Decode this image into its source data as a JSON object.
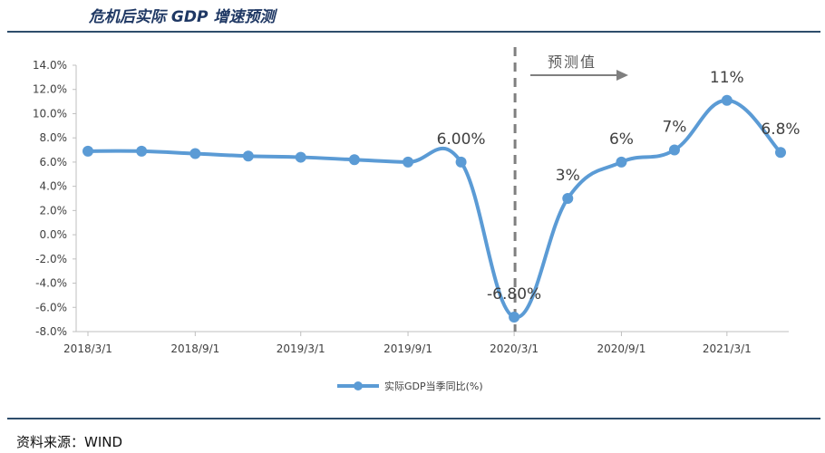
{
  "title": "危机后实际 GDP 增速预测",
  "source": "资料来源：WIND",
  "forecast_label": "预测值",
  "chart_data": {
    "type": "line",
    "title": "",
    "xlabel": "",
    "ylabel": "",
    "ylim": [
      -8.0,
      14.0
    ],
    "y_ticks": [
      "14.0%",
      "12.0%",
      "10.0%",
      "8.0%",
      "6.0%",
      "4.0%",
      "2.0%",
      "0.0%",
      "-2.0%",
      "-4.0%",
      "-6.0%",
      "-8.0%"
    ],
    "x_ticks": [
      "2018/3/1",
      "2018/9/1",
      "2019/3/1",
      "2019/9/1",
      "2020/3/1",
      "2020/9/1",
      "2021/3/1"
    ],
    "legend_position": "bottom",
    "forecast_start": "2020/3/1",
    "series": [
      {
        "name": "实际GDP当季同比(%)",
        "color": "#5b9bd5",
        "points": [
          {
            "x": "2018/3/1",
            "y": 6.9,
            "label": ""
          },
          {
            "x": "2018/6/1",
            "y": 6.9,
            "label": ""
          },
          {
            "x": "2018/9/1",
            "y": 6.7,
            "label": ""
          },
          {
            "x": "2018/12/1",
            "y": 6.5,
            "label": ""
          },
          {
            "x": "2019/3/1",
            "y": 6.4,
            "label": ""
          },
          {
            "x": "2019/6/1",
            "y": 6.2,
            "label": ""
          },
          {
            "x": "2019/9/1",
            "y": 6.0,
            "label": ""
          },
          {
            "x": "2019/12/1",
            "y": 6.0,
            "label": "6.00%"
          },
          {
            "x": "2020/3/1",
            "y": -6.8,
            "label": "-6.80%"
          },
          {
            "x": "2020/6/1",
            "y": 3.0,
            "label": "3%"
          },
          {
            "x": "2020/9/1",
            "y": 6.0,
            "label": "6%"
          },
          {
            "x": "2020/12/1",
            "y": 7.0,
            "label": "7%"
          },
          {
            "x": "2021/3/1",
            "y": 11.1,
            "label": "11%"
          },
          {
            "x": "2021/6/1",
            "y": 6.8,
            "label": "6.8%"
          }
        ]
      }
    ]
  }
}
